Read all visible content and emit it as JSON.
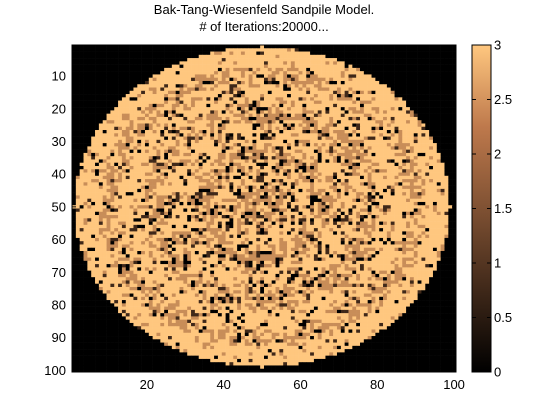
{
  "chart_data": {
    "type": "heatmap",
    "title": [
      "Bak-Tang-Wiesenfeld Sandpile Model.",
      "# of Iterations:20000..."
    ],
    "xlabel": "",
    "ylabel": "",
    "grid": false,
    "x_range": [
      1,
      100
    ],
    "y_range": [
      1,
      100
    ],
    "y_reversed": true,
    "x_ticks": [
      20,
      40,
      60,
      80,
      100
    ],
    "y_ticks": [
      10,
      20,
      30,
      40,
      50,
      60,
      70,
      80,
      90,
      100
    ],
    "grid_size": [
      100,
      100
    ],
    "value_range": [
      0,
      3
    ],
    "colormap": "copper",
    "colorbar": {
      "ticks": [
        0,
        0.5,
        1,
        1.5,
        2,
        2.5,
        3
      ],
      "tick_labels": [
        "0",
        "0.5",
        "1",
        "1.5",
        "2",
        "2.5",
        "3"
      ],
      "range": [
        0,
        3
      ]
    },
    "pattern": {
      "description": "Circular sandpile pattern after 20000 grains dropped at the center; cells outside the circle are 0 (black), inside mostly 2-3 with fractal triangular motifs and scattered 0/1 cells",
      "center": [
        50,
        50
      ],
      "radius": 49,
      "outside_value": 0
    }
  },
  "colors": {
    "copper_low": "#000000",
    "copper_high": "#ffc77f",
    "axis": "#000000",
    "background": "#ffffff"
  }
}
